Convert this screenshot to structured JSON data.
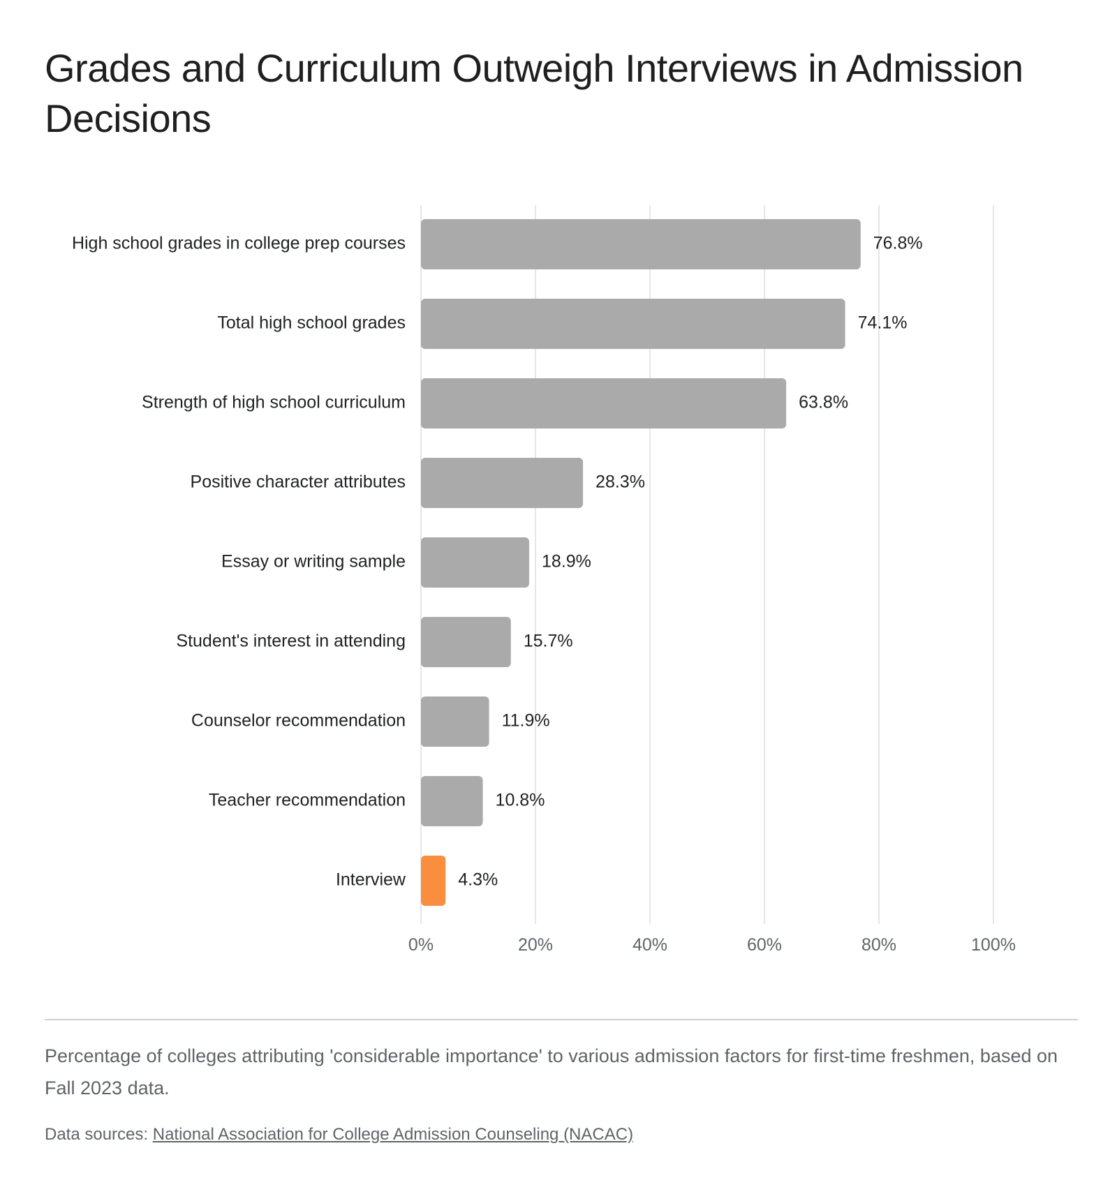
{
  "title": "Grades and Curriculum Outweigh Interviews in Admission Decisions",
  "caption": "Percentage of colleges attributing 'considerable importance' to various admission factors for first-time freshmen, based on Fall 2023 data.",
  "source": {
    "prefix": "Data sources: ",
    "link_text": "National Association for College Admission Counseling (NACAC)"
  },
  "colors": {
    "bar": "#aaaaaa",
    "highlight": "#f98e3e",
    "grid": "#dddddd"
  },
  "chart_data": {
    "type": "bar",
    "orientation": "horizontal",
    "categories": [
      "High school grades in college prep courses",
      "Total high school grades",
      "Strength of high school curriculum",
      "Positive character attributes",
      "Essay or writing sample",
      "Student's interest in attending",
      "Counselor recommendation",
      "Teacher recommendation",
      "Interview"
    ],
    "values": [
      76.8,
      74.1,
      63.8,
      28.3,
      18.9,
      15.7,
      11.9,
      10.8,
      4.3
    ],
    "value_labels": [
      "76.8%",
      "74.1%",
      "63.8%",
      "28.3%",
      "18.9%",
      "15.7%",
      "11.9%",
      "10.8%",
      "4.3%"
    ],
    "highlight_category": "Interview",
    "xlim": [
      0,
      100
    ],
    "xticks": [
      0,
      20,
      40,
      60,
      80,
      100
    ],
    "xtick_labels": [
      "0%",
      "20%",
      "40%",
      "60%",
      "80%",
      "100%"
    ],
    "grid": true,
    "legend": "none"
  }
}
